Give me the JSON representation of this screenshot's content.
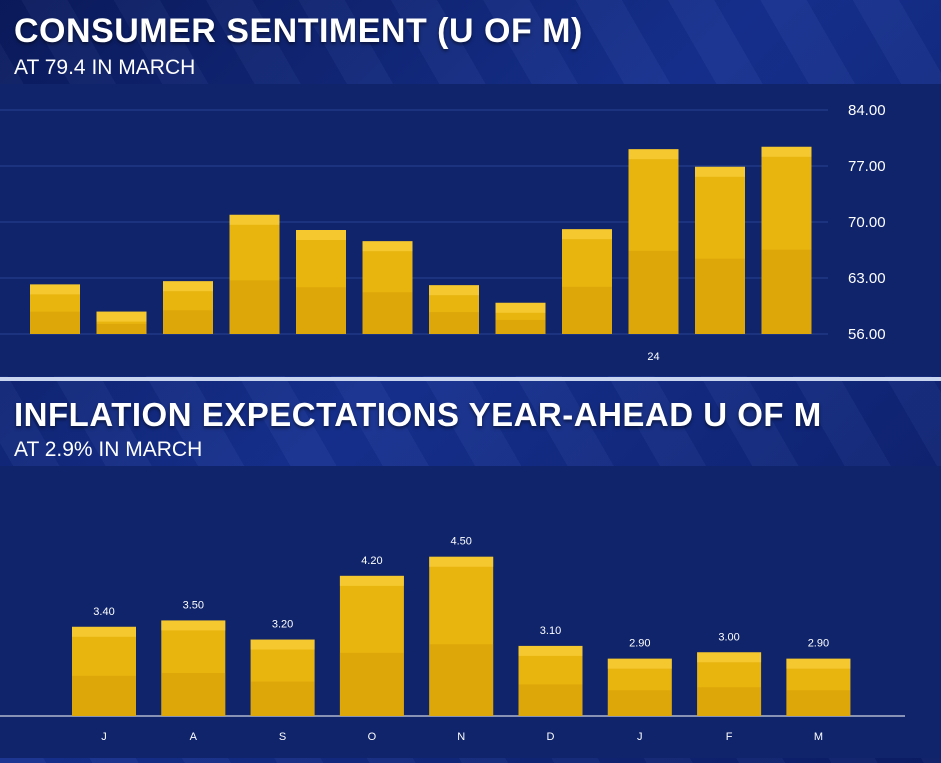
{
  "chart_data": [
    {
      "type": "bar",
      "title": "CONSUMER SENTIMENT (U OF M)",
      "subtitle": "AT 79.4 IN MARCH",
      "categories": [
        "",
        "",
        "",
        "",
        "",
        "",
        "",
        "",
        "",
        "24",
        "",
        ""
      ],
      "values": [
        62.2,
        58.8,
        62.6,
        70.9,
        69.0,
        67.6,
        62.1,
        59.9,
        69.1,
        79.1,
        76.9,
        79.4
      ],
      "ylim": [
        56.0,
        84.0
      ],
      "yticks": [
        "84.00",
        "77.00",
        "70.00",
        "63.00",
        "56.00"
      ],
      "ytick_values": [
        84,
        77,
        70,
        63,
        56
      ],
      "xlabel": "",
      "ylabel": "",
      "grid": true,
      "color": "#e8b40e"
    },
    {
      "type": "bar",
      "title": "INFLATION EXPECTATIONS YEAR-AHEAD U OF M",
      "subtitle": "AT 2.9% IN MARCH",
      "categories": [
        "J",
        "A",
        "S",
        "O",
        "N",
        "D",
        "J",
        "F",
        "M"
      ],
      "values": [
        3.4,
        3.5,
        3.2,
        4.2,
        4.5,
        3.1,
        2.9,
        3.0,
        2.9
      ],
      "data_labels": [
        "3.40",
        "3.50",
        "3.20",
        "4.20",
        "4.50",
        "3.10",
        "2.90",
        "3.00",
        "2.90"
      ],
      "ylim": [
        2.0,
        4.7
      ],
      "xlabel": "",
      "ylabel": "",
      "grid": false,
      "color": "#e8b40e"
    }
  ]
}
